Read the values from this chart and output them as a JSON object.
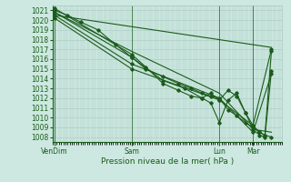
{
  "title": "Pression niveau de la mer( hPa )",
  "bg_color": "#cce8e0",
  "plot_bg": "#cce8e0",
  "grid_color": "#aac8c0",
  "line_color": "#1a5c1a",
  "ylim": [
    1007.5,
    1021.5
  ],
  "yticks": [
    1008,
    1009,
    1010,
    1011,
    1012,
    1013,
    1014,
    1015,
    1016,
    1017,
    1018,
    1019,
    1020,
    1021
  ],
  "xtick_labels": [
    "VenDim",
    "Sam",
    "Lun",
    "Mar"
  ],
  "xtick_positions": [
    0.0,
    0.355,
    0.76,
    0.915
  ],
  "xlim": [
    -0.01,
    1.05
  ],
  "series": [
    {
      "x": [
        0.0,
        0.06,
        0.12,
        0.2,
        0.28,
        0.355,
        0.42,
        0.5,
        0.57,
        0.63,
        0.68,
        0.72,
        0.76,
        0.8,
        0.84,
        0.88,
        0.915,
        0.945,
        0.97,
        1.0
      ],
      "y": [
        1021.0,
        1020.5,
        1019.8,
        1019.0,
        1017.5,
        1016.2,
        1015.0,
        1014.2,
        1013.5,
        1013.0,
        1012.5,
        1012.2,
        1012.0,
        1010.8,
        1010.2,
        1009.5,
        1009.0,
        1008.5,
        1008.2,
        1008.0
      ],
      "marker": "D",
      "ms": 1.8,
      "lw": 0.8
    },
    {
      "x": [
        0.0,
        0.355,
        0.76,
        0.915,
        1.0
      ],
      "y": [
        1020.8,
        1016.8,
        1012.5,
        1008.8,
        1008.5
      ],
      "marker": null,
      "ms": 0,
      "lw": 0.8
    },
    {
      "x": [
        0.0,
        0.355,
        0.76,
        0.915,
        1.0
      ],
      "y": [
        1020.5,
        1015.5,
        1012.0,
        1008.5,
        1014.5
      ],
      "marker": "D",
      "ms": 1.8,
      "lw": 0.8
    },
    {
      "x": [
        0.0,
        0.355,
        0.76,
        0.915,
        1.0
      ],
      "y": [
        1020.2,
        1015.0,
        1011.8,
        1009.2,
        1017.0
      ],
      "marker": "D",
      "ms": 1.8,
      "lw": 0.8
    },
    {
      "x": [
        0.0,
        0.355,
        0.5,
        0.6,
        0.68,
        0.72,
        0.76,
        0.8,
        0.84,
        0.88,
        0.915,
        0.945,
        0.97,
        1.0
      ],
      "y": [
        1020.8,
        1016.2,
        1013.8,
        1013.0,
        1012.0,
        1011.5,
        1009.5,
        1011.8,
        1012.5,
        1010.5,
        1008.8,
        1008.2,
        1008.0,
        1014.8
      ],
      "marker": "D",
      "ms": 1.8,
      "lw": 0.8
    },
    {
      "x": [
        0.0,
        0.355,
        0.42,
        0.5,
        0.57,
        0.63,
        0.68,
        0.72,
        0.76,
        0.8,
        0.84,
        0.88,
        0.915,
        0.945,
        0.97,
        1.0
      ],
      "y": [
        1021.2,
        1016.5,
        1015.2,
        1013.5,
        1012.8,
        1012.2,
        1012.0,
        1012.5,
        1011.8,
        1012.8,
        1012.2,
        1010.5,
        1009.2,
        1008.5,
        1008.2,
        1016.8
      ],
      "marker": "D",
      "ms": 1.8,
      "lw": 0.8
    },
    {
      "x": [
        0.0,
        1.0
      ],
      "y": [
        1020.5,
        1017.2
      ],
      "marker": null,
      "ms": 0,
      "lw": 0.8
    }
  ]
}
